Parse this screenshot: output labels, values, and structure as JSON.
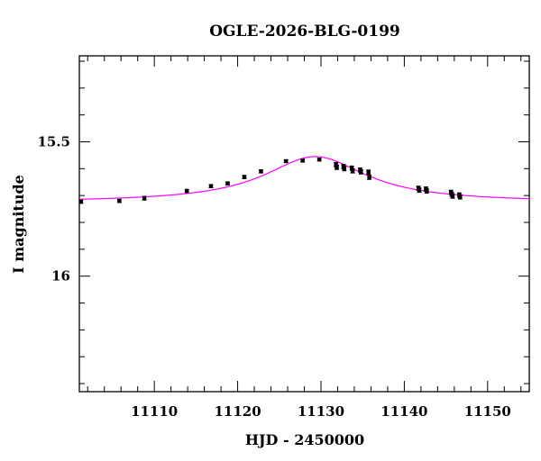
{
  "chart_data": {
    "type": "scatter",
    "title": "OGLE-2026-BLG-0199",
    "xlabel": "HJD - 2450000",
    "ylabel": "I magnitude",
    "xlim": [
      11101,
      11155
    ],
    "ylim": [
      16.43,
      15.18
    ],
    "y_inverted": true,
    "x_ticks": [
      11110,
      11120,
      11130,
      11140,
      11150
    ],
    "x_tick_labels": [
      "11110",
      "11120",
      "11130",
      "11140",
      "11150"
    ],
    "y_ticks": [
      15.5,
      16
    ],
    "y_tick_labels": [
      "15.5",
      "16"
    ],
    "grid": false,
    "model_color": "#ff00ff",
    "marker_color": "#000000",
    "model": {
      "name": "",
      "t0": 11129.3,
      "m_peak": 15.555,
      "m_base": 15.725,
      "tau": 7.5
    },
    "series": [
      {
        "name": "",
        "x": [
          11101.2,
          11105.8,
          11108.8,
          11113.9,
          11116.8,
          11118.8,
          11120.8,
          11122.8,
          11125.8,
          11127.8,
          11129.8,
          11131.8,
          11131.9,
          11132.7,
          11132.8,
          11133.7,
          11133.8,
          11134.7,
          11134.8,
          11135.7,
          11135.8,
          11141.7,
          11141.8,
          11142.6,
          11142.7,
          11145.6,
          11145.7,
          11145.8,
          11146.6,
          11146.7
        ],
        "y": [
          15.723,
          15.72,
          15.71,
          15.683,
          15.665,
          15.655,
          15.631,
          15.61,
          15.572,
          15.57,
          15.566,
          15.585,
          15.595,
          15.592,
          15.6,
          15.598,
          15.608,
          15.605,
          15.612,
          15.613,
          15.632,
          15.673,
          15.68,
          15.676,
          15.683,
          15.688,
          15.695,
          15.702,
          15.698,
          15.705
        ],
        "y_err": [
          0.006,
          0.006,
          0.007,
          0.006,
          0.006,
          0.006,
          0.006,
          0.006,
          0.005,
          0.005,
          0.005,
          0.008,
          0.008,
          0.008,
          0.008,
          0.008,
          0.008,
          0.008,
          0.008,
          0.008,
          0.008,
          0.008,
          0.008,
          0.008,
          0.008,
          0.008,
          0.008,
          0.008,
          0.008,
          0.008
        ]
      }
    ]
  }
}
